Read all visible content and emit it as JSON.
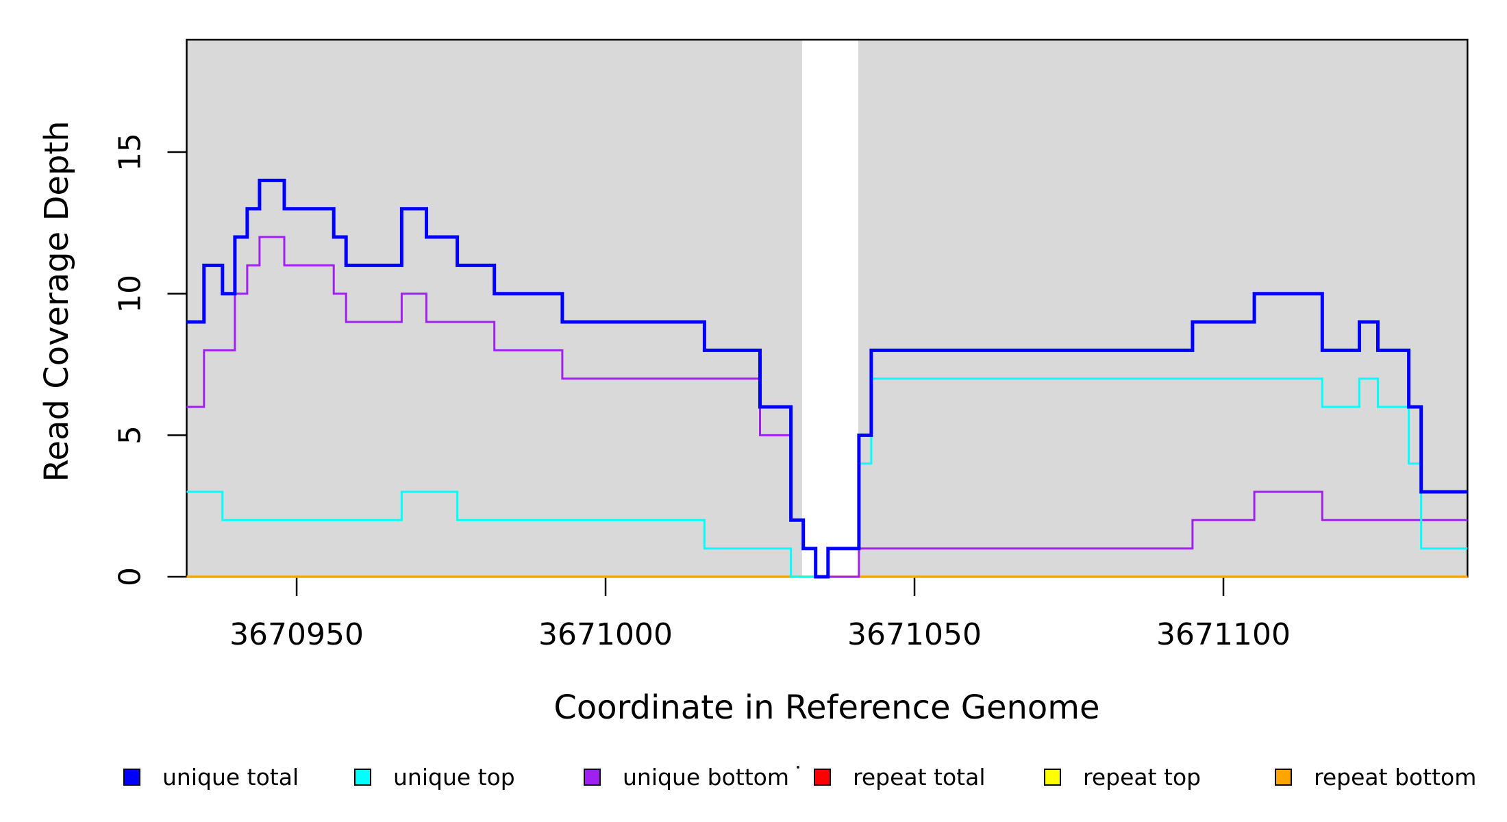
{
  "page": {
    "background": "#ffffff"
  },
  "chart_data": {
    "type": "line",
    "step": true,
    "title": "",
    "xlabel": "Coordinate in Reference Genome",
    "ylabel": "Read Coverage Depth",
    "xlim": [
      3670932.2,
      3671139.5
    ],
    "ylim": [
      0,
      19
    ],
    "x_ticks": [
      3670950,
      3671000,
      3671050,
      3671100
    ],
    "x_tick_labels": [
      "3670950",
      "3671000",
      "3671050",
      "3671100"
    ],
    "y_ticks": [
      0,
      5,
      10,
      15
    ],
    "y_tick_labels": [
      "0",
      "5",
      "10",
      "15"
    ],
    "grid": false,
    "legend_position": "bottom",
    "plot_background": "#d9d9d9",
    "gap_region": [
      3671031.8,
      3671040.9
    ],
    "shaded_regions": [
      [
        3670932.2,
        3671031.8
      ],
      [
        3671040.9,
        3671139.5
      ]
    ],
    "series": [
      {
        "name": "repeat total",
        "color": "#ff0000",
        "width": 3,
        "steps": [
          [
            3670932.2,
            0
          ],
          [
            3671139.5,
            0
          ]
        ]
      },
      {
        "name": "repeat top",
        "color": "#ffff00",
        "width": 3,
        "steps": [
          [
            3670932.2,
            0
          ],
          [
            3671139.5,
            0
          ]
        ]
      },
      {
        "name": "repeat bottom",
        "color": "#ffa500",
        "width": 3.5,
        "steps": [
          [
            3670932.2,
            0
          ],
          [
            3671139.5,
            0
          ]
        ]
      },
      {
        "name": "unique bottom",
        "color": "#a020f0",
        "width": 3,
        "steps": [
          [
            3670932.2,
            6
          ],
          [
            3670935,
            8
          ],
          [
            3670940,
            10
          ],
          [
            3670942,
            11
          ],
          [
            3670944,
            12
          ],
          [
            3670948,
            11
          ],
          [
            3670956,
            10
          ],
          [
            3670958,
            9
          ],
          [
            3670967,
            10
          ],
          [
            3670971,
            9
          ],
          [
            3670982,
            8
          ],
          [
            3670993,
            7
          ],
          [
            3671025,
            5
          ],
          [
            3671030,
            2
          ],
          [
            3671032,
            1
          ],
          [
            3671034,
            0
          ],
          [
            3671041,
            1
          ],
          [
            3671095,
            2
          ],
          [
            3671105,
            3
          ],
          [
            3671116,
            2
          ],
          [
            3671139.5,
            2
          ]
        ]
      },
      {
        "name": "unique top",
        "color": "#00ffff",
        "width": 3,
        "steps": [
          [
            3670932.2,
            3
          ],
          [
            3670938,
            2
          ],
          [
            3670967,
            3
          ],
          [
            3670976,
            2
          ],
          [
            3671016,
            1
          ],
          [
            3671030,
            0
          ],
          [
            3671036,
            1
          ],
          [
            3671041,
            4
          ],
          [
            3671043,
            7
          ],
          [
            3671116,
            6
          ],
          [
            3671122,
            7
          ],
          [
            3671125,
            6
          ],
          [
            3671130,
            4
          ],
          [
            3671132,
            1
          ],
          [
            3671139.5,
            1
          ]
        ]
      },
      {
        "name": "unique total",
        "color": "#0000ff",
        "width": 5,
        "steps": [
          [
            3670932.2,
            9
          ],
          [
            3670935,
            11
          ],
          [
            3670938,
            10
          ],
          [
            3670940,
            12
          ],
          [
            3670942,
            13
          ],
          [
            3670944,
            14
          ],
          [
            3670948,
            13
          ],
          [
            3670956,
            12
          ],
          [
            3670958,
            11
          ],
          [
            3670967,
            13
          ],
          [
            3670971,
            12
          ],
          [
            3670976,
            11
          ],
          [
            3670982,
            10
          ],
          [
            3670993,
            9
          ],
          [
            3671016,
            8
          ],
          [
            3671025,
            6
          ],
          [
            3671030,
            2
          ],
          [
            3671032,
            1
          ],
          [
            3671034,
            0
          ],
          [
            3671036,
            1
          ],
          [
            3671041,
            5
          ],
          [
            3671043,
            8
          ],
          [
            3671095,
            9
          ],
          [
            3671105,
            10
          ],
          [
            3671116,
            8
          ],
          [
            3671122,
            9
          ],
          [
            3671125,
            8
          ],
          [
            3671130,
            6
          ],
          [
            3671132,
            3
          ],
          [
            3671139.5,
            3
          ]
        ]
      }
    ]
  },
  "legend": {
    "items": [
      {
        "label": "unique total",
        "color": "#0000ff"
      },
      {
        "label": "unique top",
        "color": "#00ffff"
      },
      {
        "label": "unique bottom",
        "color": "#a020f0"
      },
      {
        "label": "repeat total",
        "color": "#ff0000"
      },
      {
        "label": "repeat top",
        "color": "#ffff00"
      },
      {
        "label": "repeat bottom",
        "color": "#ffa500"
      }
    ]
  }
}
